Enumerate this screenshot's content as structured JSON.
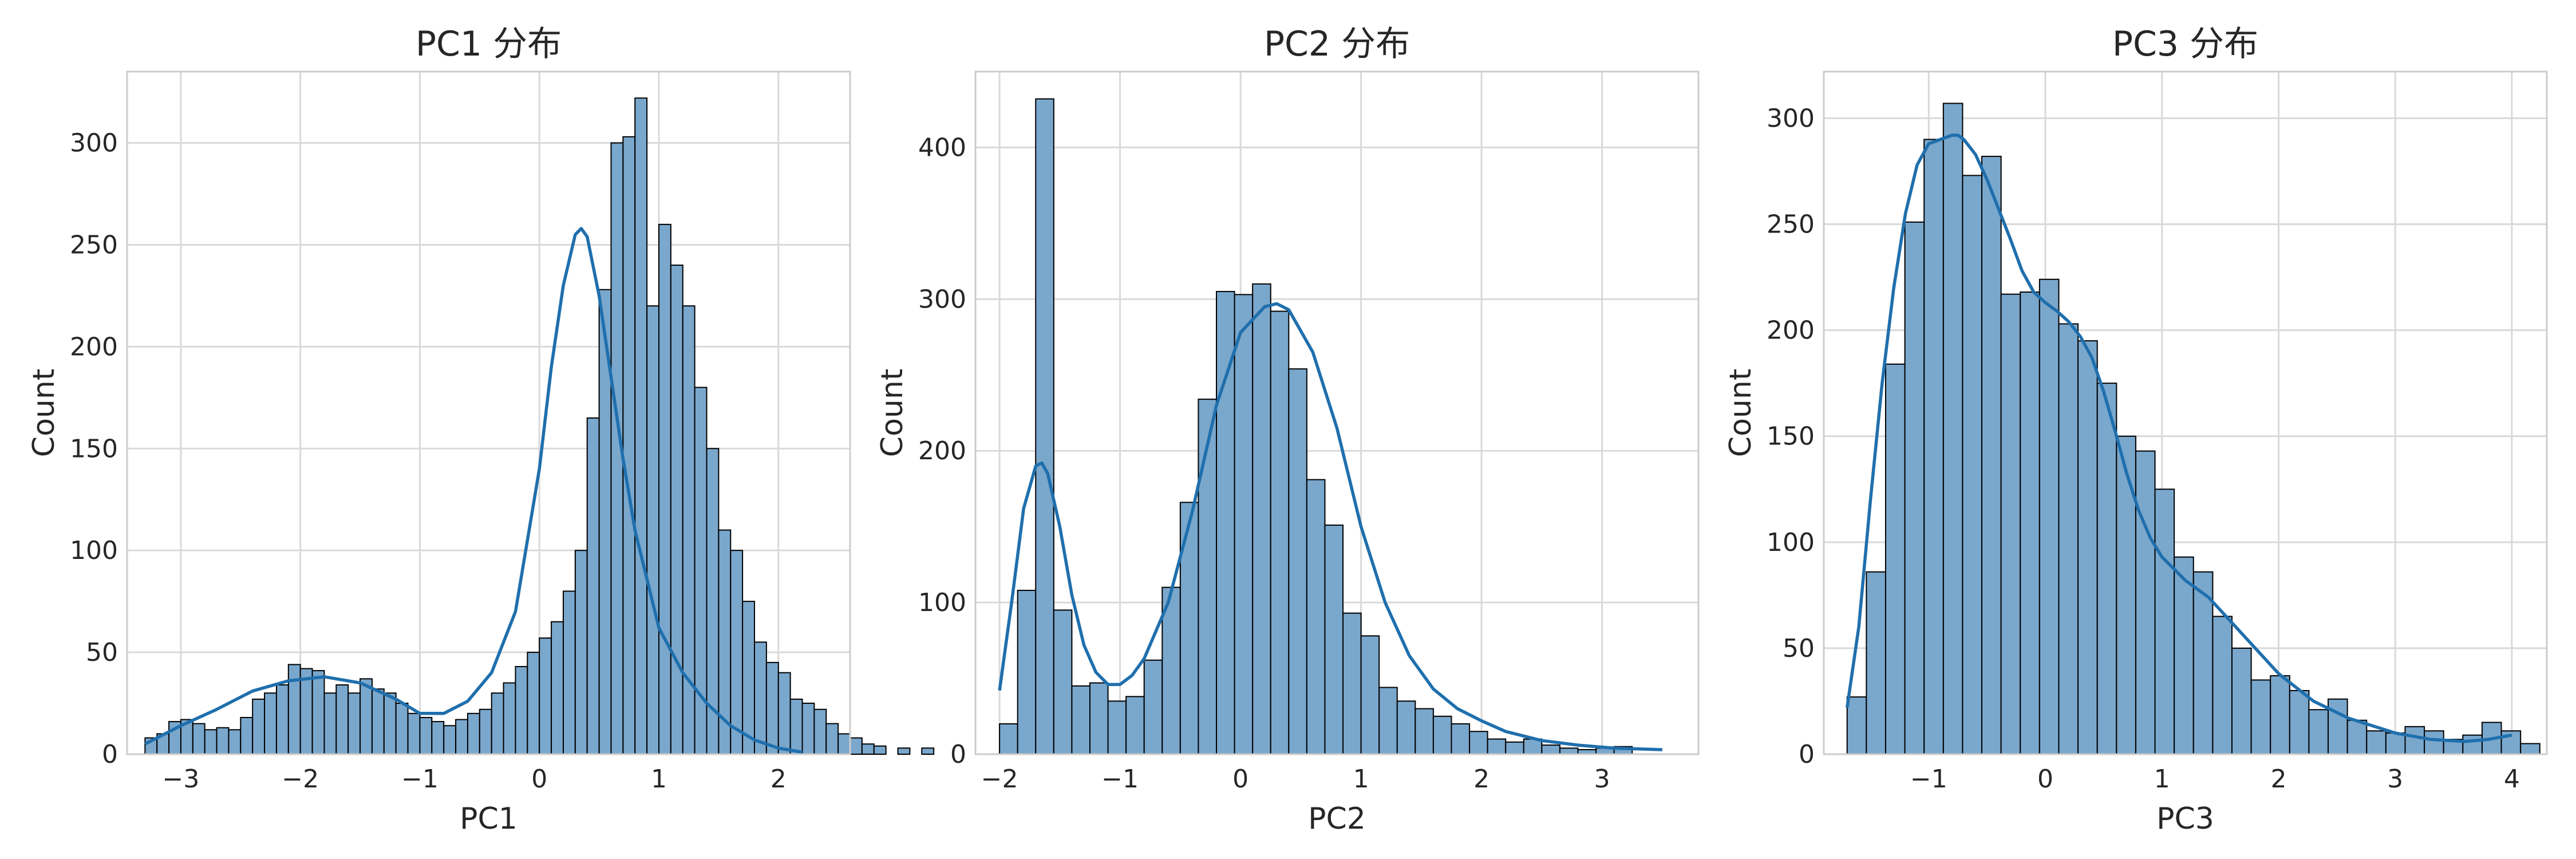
{
  "chart_data": [
    {
      "type": "histogram",
      "title": "PC1 分布",
      "xlabel": "PC1",
      "ylabel": "Count",
      "xlim": [
        -3.45,
        2.6
      ],
      "ylim": [
        0,
        335
      ],
      "xticks": [
        -3,
        -2,
        -1,
        0,
        1,
        2
      ],
      "yticks": [
        0,
        50,
        100,
        150,
        200,
        250,
        300
      ],
      "grid": true,
      "bin_start": -3.3,
      "bin_width": 0.1,
      "counts": [
        8,
        10,
        16,
        17,
        15,
        12,
        13,
        12,
        18,
        27,
        30,
        34,
        44,
        42,
        41,
        30,
        34,
        30,
        37,
        32,
        30,
        25,
        20,
        18,
        16,
        14,
        17,
        20,
        22,
        30,
        35,
        43,
        50,
        57,
        65,
        80,
        100,
        165,
        228,
        300,
        303,
        322,
        220,
        260,
        240,
        220,
        180,
        150,
        110,
        100,
        75,
        55,
        45,
        40,
        27,
        25,
        22,
        15,
        10,
        8,
        5,
        4,
        0,
        3,
        0,
        3
      ],
      "kde": {
        "x": [
          -3.3,
          -3.0,
          -2.7,
          -2.4,
          -2.1,
          -1.8,
          -1.5,
          -1.2,
          -1.0,
          -0.8,
          -0.6,
          -0.4,
          -0.2,
          0.0,
          0.1,
          0.2,
          0.3,
          0.35,
          0.4,
          0.5,
          0.6,
          0.7,
          0.8,
          1.0,
          1.2,
          1.4,
          1.6,
          1.8,
          2.0,
          2.2
        ],
        "y": [
          5,
          14,
          22,
          31,
          36,
          38,
          35,
          27,
          20,
          20,
          26,
          40,
          70,
          140,
          190,
          230,
          255,
          258,
          254,
          225,
          185,
          145,
          110,
          62,
          40,
          25,
          14,
          7,
          3,
          1
        ]
      }
    },
    {
      "type": "histogram",
      "title": "PC2 分布",
      "xlabel": "PC2",
      "ylabel": "Count",
      "xlim": [
        -2.2,
        3.8
      ],
      "ylim": [
        0,
        450
      ],
      "xticks": [
        -2,
        -1,
        0,
        1,
        2,
        3
      ],
      "yticks": [
        0,
        100,
        200,
        300,
        400
      ],
      "grid": true,
      "bin_start": -2.0,
      "bin_width": 0.15,
      "counts": [
        20,
        108,
        432,
        95,
        45,
        47,
        35,
        38,
        62,
        110,
        166,
        234,
        305,
        303,
        310,
        292,
        254,
        181,
        151,
        93,
        78,
        44,
        35,
        30,
        25,
        20,
        15,
        10,
        8,
        10,
        6,
        4,
        3,
        4,
        5
      ],
      "kde": {
        "x": [
          -2.0,
          -1.9,
          -1.8,
          -1.7,
          -1.65,
          -1.6,
          -1.5,
          -1.4,
          -1.3,
          -1.2,
          -1.1,
          -1.0,
          -0.9,
          -0.8,
          -0.6,
          -0.4,
          -0.2,
          0.0,
          0.2,
          0.3,
          0.4,
          0.6,
          0.8,
          1.0,
          1.2,
          1.4,
          1.6,
          1.8,
          2.0,
          2.2,
          2.5,
          2.8,
          3.1,
          3.5
        ],
        "y": [
          42,
          100,
          162,
          190,
          192,
          185,
          150,
          105,
          72,
          54,
          46,
          46,
          52,
          63,
          100,
          160,
          230,
          278,
          295,
          297,
          293,
          265,
          215,
          150,
          100,
          65,
          43,
          30,
          22,
          15,
          9,
          6,
          4,
          3
        ]
      }
    },
    {
      "type": "histogram",
      "title": "PC3 分布",
      "xlabel": "PC3",
      "ylabel": "Count",
      "xlim": [
        -1.9,
        4.3
      ],
      "ylim": [
        0,
        322
      ],
      "xticks": [
        -1,
        0,
        1,
        2,
        3,
        4
      ],
      "yticks": [
        0,
        50,
        100,
        150,
        200,
        250,
        300
      ],
      "grid": true,
      "bin_start": -1.7,
      "bin_width": 0.165,
      "counts": [
        27,
        86,
        184,
        251,
        290,
        307,
        273,
        282,
        217,
        218,
        224,
        203,
        195,
        175,
        150,
        143,
        125,
        93,
        86,
        65,
        50,
        35,
        37,
        30,
        21,
        26,
        16,
        11,
        10,
        13,
        11,
        7,
        9,
        15,
        11,
        5
      ],
      "kde": {
        "x": [
          -1.7,
          -1.6,
          -1.5,
          -1.4,
          -1.3,
          -1.2,
          -1.1,
          -1.0,
          -0.9,
          -0.8,
          -0.75,
          -0.7,
          -0.6,
          -0.5,
          -0.4,
          -0.3,
          -0.2,
          -0.1,
          0.0,
          0.1,
          0.2,
          0.3,
          0.4,
          0.5,
          0.6,
          0.7,
          0.8,
          0.9,
          1.0,
          1.2,
          1.4,
          1.6,
          1.8,
          2.0,
          2.3,
          2.6,
          3.0,
          3.3,
          3.6,
          3.8,
          4.0
        ],
        "y": [
          22,
          60,
          120,
          175,
          220,
          255,
          278,
          288,
          290,
          292,
          292,
          290,
          283,
          271,
          257,
          243,
          228,
          218,
          213,
          209,
          204,
          197,
          187,
          171,
          152,
          132,
          115,
          102,
          93,
          82,
          74,
          62,
          50,
          38,
          25,
          17,
          10,
          7,
          6,
          7,
          9
        ]
      }
    }
  ],
  "colors": {
    "bar_fill": "#7aa7cc",
    "bar_edge": "#000000",
    "kde_line": "#1f6fad",
    "grid": "#d9d9d9",
    "frame": "#cccccc",
    "text": "#262626"
  }
}
